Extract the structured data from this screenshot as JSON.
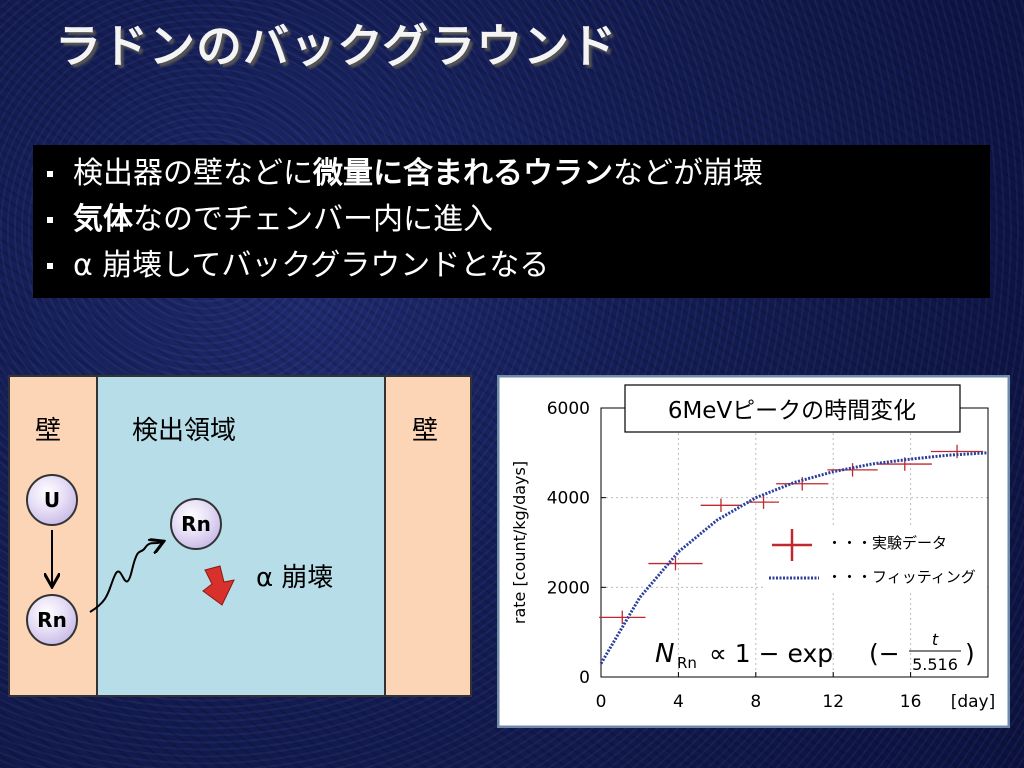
{
  "slide": {
    "title": "ラドンのバックグラウンド",
    "bullets": [
      [
        {
          "text": "検出器の壁などに",
          "bold": false
        },
        {
          "text": "微量に含まれるウラン",
          "bold": true
        },
        {
          "text": "などが崩壊",
          "bold": false
        }
      ],
      [
        {
          "text": "気体",
          "bold": true
        },
        {
          "text": "なのでチェンバー内に進入",
          "bold": false
        }
      ],
      [
        {
          "text": "α 崩壊してバックグラウンドとなる",
          "bold": false
        }
      ]
    ],
    "diagram": {
      "left_wall": "壁",
      "region": "検出領域",
      "right_wall": "壁",
      "u": "U",
      "rn_wall": "Rn",
      "rn_region": "Rn",
      "decay": "α 崩壊"
    }
  },
  "chart_data": {
    "type": "scatter",
    "title": "6MeVピークの時間変化",
    "y_label": "rate [count/kg/days]",
    "x_label": "[day]",
    "xlim": [
      0,
      20
    ],
    "xticks": [
      0,
      4,
      8,
      12,
      16
    ],
    "ylim": [
      0,
      6000
    ],
    "yticks": [
      0,
      2000,
      4000,
      6000
    ],
    "grid": true,
    "series": [
      {
        "name": "・・・実験データ",
        "color": "#c0282d",
        "x": [
          1.1,
          3.85,
          6.2,
          8.4,
          10.4,
          13.0,
          15.7,
          18.4
        ],
        "x_err": [
          1.2,
          1.4,
          1.05,
          0.8,
          1.35,
          1.3,
          1.4,
          1.35
        ],
        "values": [
          1330,
          2530,
          3830,
          3900,
          4310,
          4620,
          4750,
          5030
        ],
        "y_err": [
          150,
          150,
          150,
          150,
          150,
          150,
          150,
          150
        ]
      },
      {
        "name": "・・・フィッティング",
        "color": "#2a3f9e",
        "x": [
          0,
          2,
          4,
          6,
          8,
          10,
          12,
          14,
          16,
          18,
          20
        ],
        "values": [
          300,
          1770,
          2790,
          3500,
          4000,
          4340,
          4580,
          4750,
          4860,
          4950,
          5000
        ]
      }
    ],
    "formula": {
      "main": "N",
      "sub": "Rn",
      "rest": "∝ 1 − exp",
      "open": "(−",
      "numerator": "t",
      "denominator": "5.516",
      "close": ")"
    }
  }
}
